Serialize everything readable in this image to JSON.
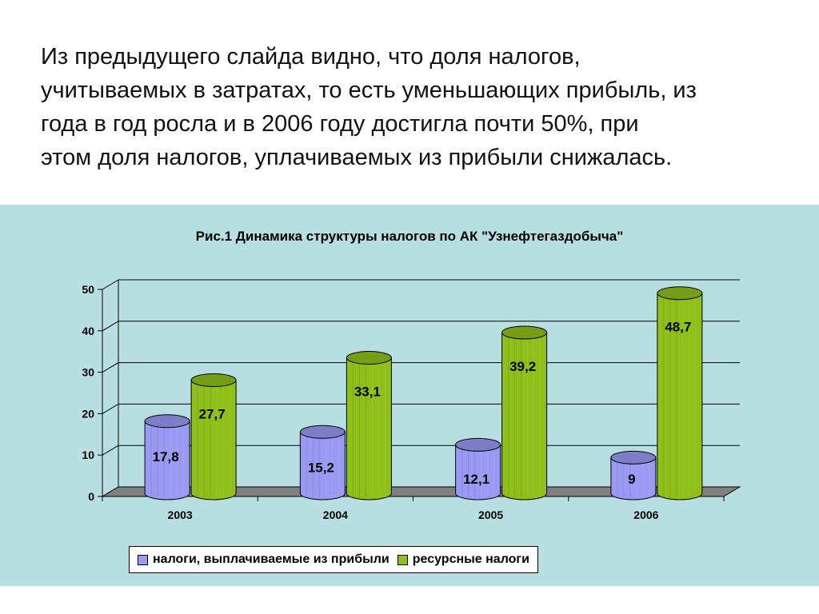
{
  "slide": {
    "text": "Из предыдущего слайда видно, что доля налогов,\nучитываемых в затратах, то есть уменьшающих прибыль, из\nгода в год росла и в 2006 году достигла почти 50%, при\nэтом доля налогов, уплачиваемых из прибыли снижалась."
  },
  "chart_data": {
    "type": "bar",
    "title": "Рис.1 Динамика структуры налогов по АК \"Узнефтегаздобыча\"",
    "categories": [
      "2003",
      "2004",
      "2005",
      "2006"
    ],
    "series": [
      {
        "name": "налоги, выплачиваемые из прибыли",
        "values": [
          17.8,
          15.2,
          12.1,
          9
        ],
        "labels": [
          "17,8",
          "15,2",
          "12,1",
          "9"
        ],
        "color": "#9a9af4"
      },
      {
        "name": "ресурсные налоги",
        "values": [
          27.7,
          33.1,
          39.2,
          48.7
        ],
        "labels": [
          "27,7",
          "33,1",
          "39,2",
          "48,7"
        ],
        "color": "#8fbf1a"
      }
    ],
    "ylim": [
      0,
      50
    ],
    "yticks": [
      "0",
      "10",
      "20",
      "30",
      "40",
      "50"
    ],
    "grid": true,
    "legend_position": "bottom",
    "background": "#b7dfe1"
  }
}
